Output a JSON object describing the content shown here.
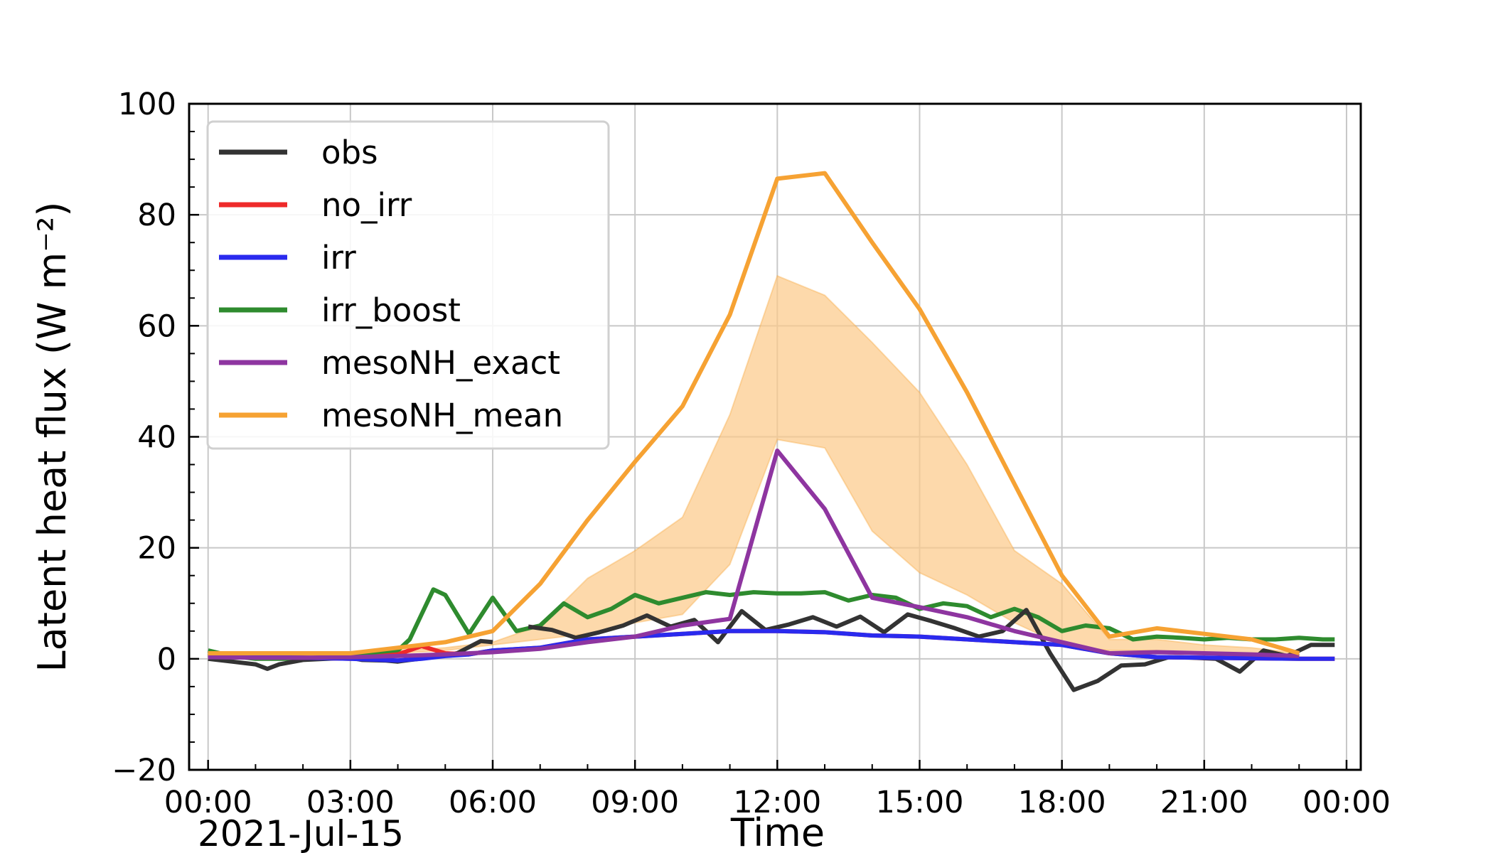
{
  "chart_data": {
    "type": "line",
    "xlabel": "Time",
    "ylabel": "Latent heat flux (W m⁻²)",
    "date_label": "2021-Jul-15",
    "xlim": [
      -0.4,
      24.3
    ],
    "ylim": [
      -20,
      100
    ],
    "grid": true,
    "legend_position": "upper-left",
    "x_ticks": [
      0,
      3,
      6,
      9,
      12,
      15,
      18,
      21,
      24
    ],
    "x_tick_labels": [
      "00:00",
      "03:00",
      "06:00",
      "09:00",
      "12:00",
      "15:00",
      "18:00",
      "21:00",
      "00:00"
    ],
    "y_ticks": [
      -20,
      0,
      20,
      40,
      60,
      80,
      100
    ],
    "y_tick_labels": [
      "−20",
      "0",
      "20",
      "40",
      "60",
      "80",
      "100"
    ],
    "series": [
      {
        "name": "obs",
        "color": "#333333",
        "x": [
          0,
          0.5,
          1,
          1.25,
          1.5,
          2,
          2.5,
          3,
          3.25,
          3.75,
          4,
          4.25,
          4.75,
          5,
          5.25,
          5.75,
          6,
          6.25,
          6.75,
          7.25,
          7.75,
          8.25,
          8.75,
          9.25,
          9.75,
          10.25,
          10.75,
          11.25,
          11.75,
          12.25,
          12.75,
          13.25,
          13.75,
          14.25,
          14.75,
          15.25,
          15.75,
          16.25,
          16.75,
          17.25,
          17.75,
          18.25,
          18.75,
          19.25,
          19.75,
          20.25,
          20.75,
          21.25,
          21.75,
          22.25,
          22.75,
          23.25,
          23.75
        ],
        "y": [
          0,
          -0.5,
          -1,
          -1.8,
          -1,
          -0.2,
          0,
          0.2,
          -0.2,
          -0.3,
          -0.5,
          -0.2,
          0.3,
          0.6,
          1.0,
          3.2,
          3.0,
          null,
          5.8,
          5.2,
          3.8,
          4.8,
          6.0,
          7.8,
          5.8,
          7.0,
          3.0,
          8.6,
          5.2,
          6.2,
          7.5,
          5.8,
          7.6,
          4.8,
          8.0,
          6.8,
          5.5,
          4.0,
          5.0,
          8.8,
          1.0,
          -5.6,
          -4.0,
          -1.2,
          -1.0,
          0.3,
          0.2,
          0.0,
          -2.3,
          1.5,
          0.5,
          2.5,
          2.5
        ]
      },
      {
        "name": "no_irr",
        "color": "#ee2a2a",
        "x": [
          0,
          1,
          2,
          3,
          4,
          4.5,
          5,
          5.5,
          6,
          7,
          8,
          9,
          10,
          11,
          12,
          13,
          14,
          15,
          16,
          17,
          18,
          19,
          20,
          21,
          22,
          23,
          23.75
        ],
        "y": [
          0.5,
          0.3,
          0.2,
          0,
          0.8,
          2.3,
          1.0,
          0.8,
          1.5,
          2.0,
          3.5,
          4.0,
          4.5,
          5.0,
          5.0,
          4.8,
          4.2,
          4.0,
          3.5,
          3.0,
          2.5,
          1.0,
          0.3,
          0.2,
          0.1,
          0,
          0
        ]
      },
      {
        "name": "irr",
        "color": "#2a2aee",
        "x": [
          0,
          1,
          2,
          3,
          4,
          4.5,
          5,
          5.5,
          6,
          7,
          8,
          9,
          10,
          11,
          12,
          13,
          14,
          15,
          16,
          17,
          18,
          19,
          20,
          21,
          22,
          23,
          23.75
        ],
        "y": [
          0.5,
          0.3,
          0.2,
          0,
          -0.3,
          0,
          0.5,
          0.8,
          1.5,
          2.0,
          3.5,
          4.0,
          4.5,
          5.0,
          5.0,
          4.8,
          4.2,
          4.0,
          3.5,
          3.0,
          2.5,
          1.0,
          0.3,
          0.2,
          0.1,
          0,
          0
        ]
      },
      {
        "name": "irr_boost",
        "color": "#2e8b2e",
        "x": [
          0,
          0.5,
          1,
          1.5,
          2,
          2.5,
          3,
          3.5,
          4,
          4.25,
          4.5,
          4.75,
          5,
          5.5,
          6,
          6.5,
          7,
          7.5,
          8,
          8.5,
          9,
          9.5,
          10,
          10.5,
          11,
          11.5,
          12,
          12.5,
          13,
          13.5,
          14,
          14.5,
          15,
          15.5,
          16,
          16.5,
          17,
          17.5,
          18,
          18.5,
          19,
          19.5,
          20,
          20.5,
          21,
          21.5,
          22,
          22.5,
          23,
          23.5,
          23.75
        ],
        "y": [
          1.5,
          0.5,
          0,
          0,
          0,
          0.3,
          0.5,
          0.8,
          1.5,
          3.5,
          8.0,
          12.5,
          11.5,
          4.5,
          11.0,
          5.0,
          6.0,
          10.0,
          7.5,
          9.0,
          11.5,
          10.0,
          11.0,
          12.0,
          11.5,
          12.0,
          11.8,
          11.8,
          12.0,
          10.5,
          11.5,
          11.0,
          9.0,
          10.0,
          9.5,
          7.5,
          9.0,
          7.5,
          5.0,
          6.0,
          5.5,
          3.5,
          4.0,
          3.8,
          3.5,
          3.8,
          3.5,
          3.5,
          3.8,
          3.5,
          3.5
        ]
      },
      {
        "name": "mesoNH_exact",
        "color": "#8e35a0",
        "x": [
          0,
          1,
          2,
          3,
          4,
          5,
          6,
          7,
          8,
          9,
          10,
          11,
          12,
          13,
          14,
          15,
          16,
          17,
          18,
          19,
          20,
          21,
          22,
          23
        ],
        "y": [
          0.3,
          0.2,
          0.2,
          0.3,
          0.5,
          0.8,
          1.2,
          1.8,
          3.0,
          4.0,
          6.0,
          7.2,
          37.5,
          27.0,
          11.0,
          9.3,
          7.5,
          5.0,
          3.0,
          1.0,
          1.2,
          1.0,
          0.8,
          0.5
        ]
      },
      {
        "name": "mesoNH_mean",
        "color": "#f6a233",
        "band_color": "#fcc987",
        "x": [
          0,
          1,
          2,
          3,
          4,
          5,
          6,
          7,
          8,
          9,
          10,
          11,
          12,
          13,
          14,
          15,
          16,
          17,
          18,
          19,
          20,
          21,
          22,
          23
        ],
        "y": [
          1.0,
          1.0,
          1.0,
          1.0,
          2.0,
          3.0,
          5.0,
          13.5,
          25.0,
          35.5,
          45.5,
          62.0,
          86.5,
          87.5,
          75.0,
          63.0,
          48.0,
          31.5,
          15.0,
          4.0,
          5.5,
          4.5,
          3.5,
          1.0
        ],
        "band_lower": [
          0.5,
          0.5,
          0.5,
          0.8,
          1.0,
          1.5,
          2.5,
          3.5,
          4.5,
          6.5,
          8.0,
          17.0,
          39.5,
          38.0,
          23.0,
          15.5,
          11.5,
          6.5,
          2.5,
          1.5,
          1.5,
          1.0,
          1.0,
          0.5
        ],
        "band_upper": [
          1.0,
          1.0,
          1.0,
          1.2,
          1.5,
          2.0,
          3.0,
          6.0,
          14.5,
          19.5,
          25.5,
          44.0,
          69.0,
          65.5,
          57.0,
          48.0,
          35.0,
          19.5,
          13.5,
          3.5,
          3.5,
          2.5,
          2.0,
          1.0
        ]
      }
    ]
  }
}
